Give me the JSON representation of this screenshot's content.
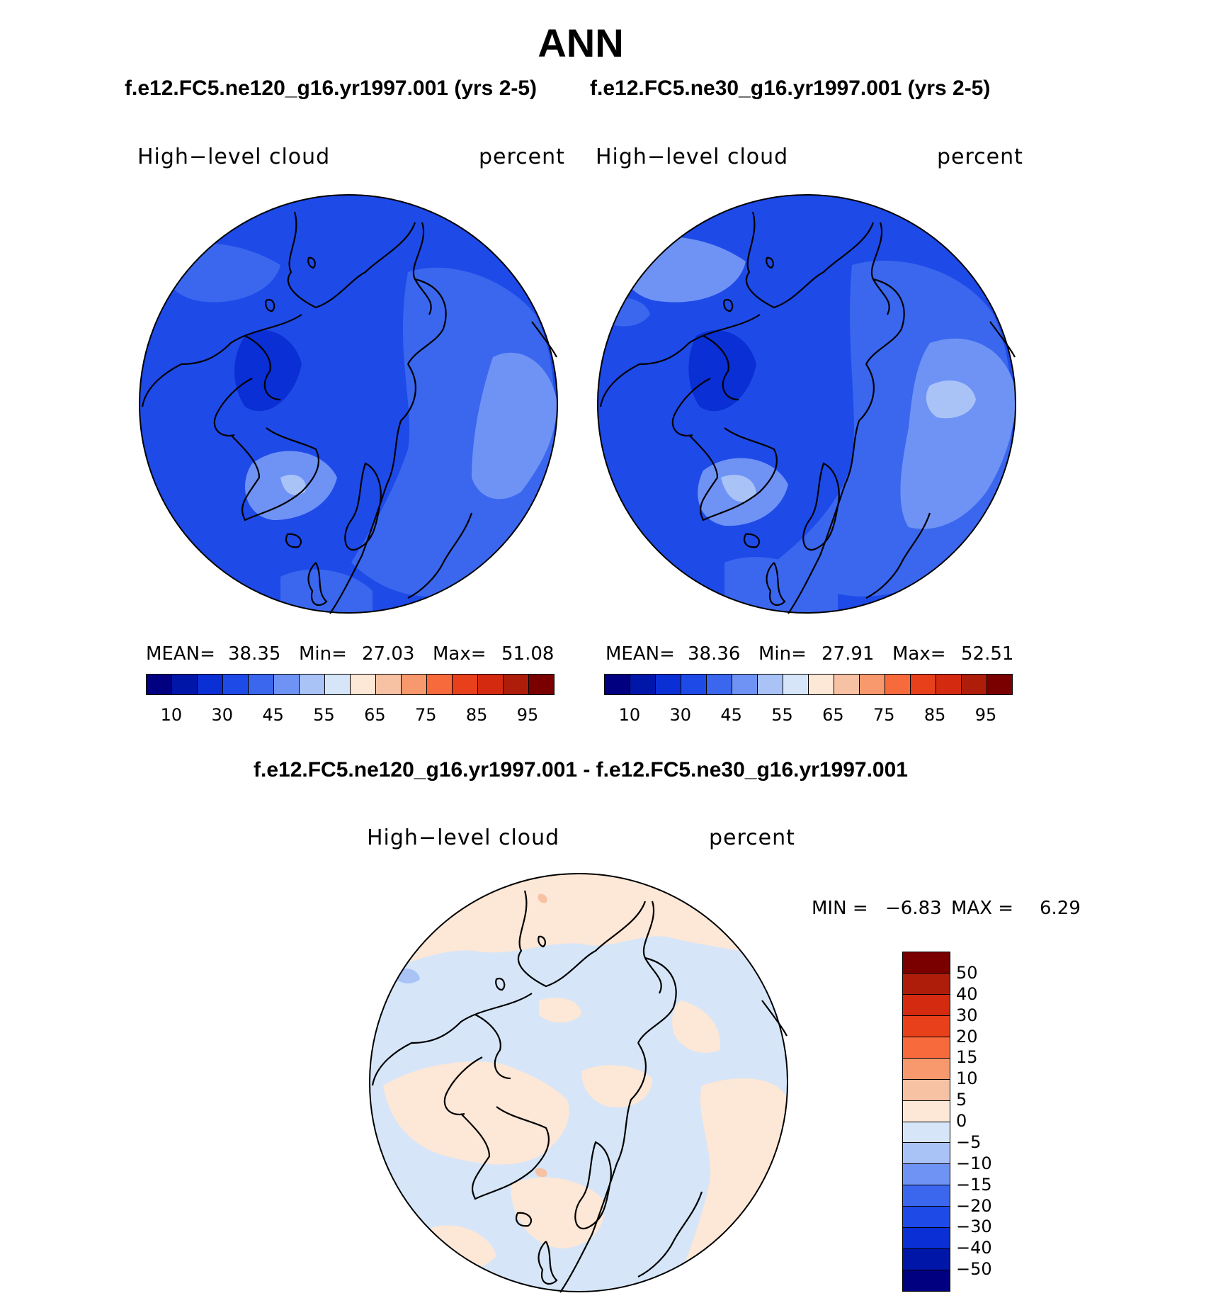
{
  "figure_title": "ANN",
  "panels": [
    {
      "case": "f.e12.FC5.ne120_g16.yr1997.001 (yrs 2-5)",
      "variable": "High−level  cloud",
      "units": "percent",
      "stats": {
        "mean_label": "MEAN=",
        "mean": "38.35",
        "min_label": "Min=",
        "min": "27.03",
        "max_label": "Max=",
        "max": "51.08"
      }
    },
    {
      "case": "f.e12.FC5.ne30_g16.yr1997.001 (yrs 2-5)",
      "variable": "High−level  cloud",
      "units": "percent",
      "stats": {
        "mean_label": "MEAN=",
        "mean": "38.36",
        "min_label": "Min=",
        "min": "27.91",
        "max_label": "Max=",
        "max": "52.51"
      }
    }
  ],
  "difference": {
    "title": "f.e12.FC5.ne120_g16.yr1997.001 - f.e12.FC5.ne30_g16.yr1997.001",
    "variable": "High−level  cloud",
    "units": "percent",
    "minmax": {
      "min_label": "MIN =",
      "min": "−6.83",
      "max_label": "MAX =",
      "max": "6.29"
    }
  },
  "colorbar_main": {
    "colors": [
      "#000080",
      "#0016a8",
      "#0a2fd4",
      "#1e4ae8",
      "#3a67ee",
      "#6f93f5",
      "#a9c3f7",
      "#d6e6f8",
      "#fde7d6",
      "#f7c1a4",
      "#f7996c",
      "#f76a3c",
      "#e8401a",
      "#d42a10",
      "#ad1d0a",
      "#7a0000"
    ],
    "ticks": [
      "10",
      "30",
      "45",
      "55",
      "65",
      "75",
      "85",
      "95"
    ]
  },
  "colorbar_diff": {
    "colors_top_to_bottom": [
      "#7a0000",
      "#ad1d0a",
      "#d42a10",
      "#e8401a",
      "#f76a3c",
      "#f7996c",
      "#f7c1a4",
      "#fde7d6",
      "#d6e6f8",
      "#a9c3f7",
      "#6f93f5",
      "#3a67ee",
      "#1e4ae8",
      "#0a2fd4",
      "#0016a8",
      "#000080"
    ],
    "ticks": [
      "50",
      "40",
      "30",
      "20",
      "15",
      "10",
      "5",
      "0",
      "−5",
      "−10",
      "−15",
      "−20",
      "−30",
      "−40",
      "−50"
    ]
  },
  "map_colors": {
    "base_blue": "#1e4ae8",
    "mid_blue": "#3a67ee",
    "light_blue": "#6f93f5",
    "pale_blue": "#a9c3f7",
    "dark_blue": "#0a2fd4",
    "diff_pale_blue": "#d6e6f8",
    "diff_pale_orange": "#fde7d6",
    "diff_light_blue": "#a9c3f7",
    "diff_salmon": "#f7c1a4"
  }
}
